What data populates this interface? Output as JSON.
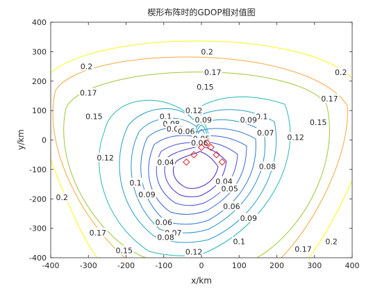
{
  "chart_data": {
    "type": "contour",
    "title": "楔形布阵时的GDOP相对值图",
    "xlabel": "x/km",
    "ylabel": "y/km",
    "xlim": [
      -400,
      400
    ],
    "ylim": [
      -400,
      400
    ],
    "x_ticks": [
      "-400",
      "-300",
      "-200",
      "-100",
      "0",
      "100",
      "200",
      "300",
      "400"
    ],
    "y_ticks": [
      "400",
      "300",
      "200",
      "100",
      "0",
      "-100",
      "-200",
      "-300",
      "-400"
    ],
    "grid": false,
    "levels": [
      0.04,
      0.05,
      0.06,
      0.07,
      0.08,
      0.09,
      0.1,
      0.12,
      0.15,
      0.17,
      0.2
    ],
    "contour_labels": [
      {
        "text": "0.2",
        "x": 15,
        "y": 300
      },
      {
        "text": "0.17",
        "x": 30,
        "y": 230
      },
      {
        "text": "0.15",
        "x": 10,
        "y": 180
      },
      {
        "text": "0.12",
        "x": -20,
        "y": 100
      },
      {
        "text": "0.1",
        "x": -95,
        "y": 80
      },
      {
        "text": "0.09",
        "x": 5,
        "y": 68
      },
      {
        "text": "0.1",
        "x": 160,
        "y": 80
      },
      {
        "text": "0.09",
        "x": 125,
        "y": 68
      },
      {
        "text": "0.08",
        "x": -80,
        "y": 55
      },
      {
        "text": "0.07",
        "x": -70,
        "y": 38
      },
      {
        "text": "0.06",
        "x": -40,
        "y": 30
      },
      {
        "text": "0.05",
        "x": 0,
        "y": 5
      },
      {
        "text": "0.06",
        "x": -5,
        "y": -10
      },
      {
        "text": "0.2",
        "x": -305,
        "y": 250
      },
      {
        "text": "0.17",
        "x": -300,
        "y": 160
      },
      {
        "text": "0.15",
        "x": -285,
        "y": 80
      },
      {
        "text": "0.12",
        "x": -255,
        "y": -60
      },
      {
        "text": "0.04",
        "x": -95,
        "y": -75
      },
      {
        "text": "0.1",
        "x": -175,
        "y": -145
      },
      {
        "text": "0.09",
        "x": -145,
        "y": -185
      },
      {
        "text": "0.2",
        "x": -370,
        "y": -195
      },
      {
        "text": "0.17",
        "x": -275,
        "y": -315
      },
      {
        "text": "0.15",
        "x": -205,
        "y": -375
      },
      {
        "text": "0.06",
        "x": -100,
        "y": -280
      },
      {
        "text": "0.07",
        "x": -75,
        "y": -315
      },
      {
        "text": "0.08",
        "x": -95,
        "y": -330
      },
      {
        "text": "0.12",
        "x": -20,
        "y": -380
      },
      {
        "text": "0.04",
        "x": 60,
        "y": -140
      },
      {
        "text": "0.05",
        "x": 75,
        "y": -165
      },
      {
        "text": "0.06",
        "x": 80,
        "y": -225
      },
      {
        "text": "0.09",
        "x": 125,
        "y": -265
      },
      {
        "text": "0.1",
        "x": 100,
        "y": -345
      },
      {
        "text": "0.07",
        "x": 170,
        "y": 25
      },
      {
        "text": "0.08",
        "x": 175,
        "y": -90
      },
      {
        "text": "0.12",
        "x": 250,
        "y": 10
      },
      {
        "text": "0.15",
        "x": 310,
        "y": 60
      },
      {
        "text": "0.17",
        "x": 340,
        "y": 140
      },
      {
        "text": "0.2",
        "x": 370,
        "y": 230
      },
      {
        "text": "0.17",
        "x": 270,
        "y": -370
      },
      {
        "text": "0.2",
        "x": 345,
        "y": -345
      }
    ],
    "stations": {
      "marker": "diamond",
      "color": "#dd2222",
      "points": [
        [
          -40,
          -75
        ],
        [
          -20,
          -50
        ],
        [
          0,
          -25
        ],
        [
          15,
          -10
        ],
        [
          25,
          -25
        ],
        [
          40,
          -50
        ],
        [
          55,
          -75
        ]
      ]
    }
  }
}
